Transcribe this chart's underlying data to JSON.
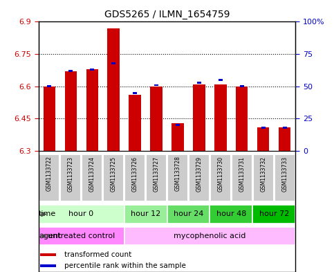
{
  "title": "GDS5265 / ILMN_1654759",
  "samples": [
    "GSM1133722",
    "GSM1133723",
    "GSM1133724",
    "GSM1133725",
    "GSM1133726",
    "GSM1133727",
    "GSM1133728",
    "GSM1133729",
    "GSM1133730",
    "GSM1133731",
    "GSM1133732",
    "GSM1133733"
  ],
  "transformed_count": [
    6.6,
    6.67,
    6.68,
    6.87,
    6.56,
    6.6,
    6.43,
    6.61,
    6.61,
    6.6,
    6.41,
    6.41
  ],
  "percentile_rank": [
    50,
    62,
    63,
    68,
    45,
    51,
    20,
    53,
    55,
    50,
    18,
    18
  ],
  "ylim_left": [
    6.3,
    6.9
  ],
  "ylim_right": [
    0,
    100
  ],
  "yticks_left": [
    6.3,
    6.45,
    6.6,
    6.75,
    6.9
  ],
  "yticks_right": [
    0,
    25,
    50,
    75,
    100
  ],
  "ytick_labels_left": [
    "6.3",
    "6.45",
    "6.6",
    "6.75",
    "6.9"
  ],
  "ytick_labels_right": [
    "0",
    "25",
    "50",
    "75",
    "100%"
  ],
  "bar_color": "#cc0000",
  "percentile_color": "#0000cc",
  "time_groups": [
    {
      "label": "hour 0",
      "samples": [
        0,
        1,
        2,
        3
      ],
      "bg": "#ccffcc"
    },
    {
      "label": "hour 12",
      "samples": [
        4,
        5
      ],
      "bg": "#99ee99"
    },
    {
      "label": "hour 24",
      "samples": [
        6,
        7
      ],
      "bg": "#66dd66"
    },
    {
      "label": "hour 48",
      "samples": [
        8,
        9
      ],
      "bg": "#33cc33"
    },
    {
      "label": "hour 72",
      "samples": [
        10,
        11
      ],
      "bg": "#00bb00"
    }
  ],
  "agent_groups": [
    {
      "label": "untreated control",
      "samples": [
        0,
        1,
        2,
        3
      ],
      "bg": "#ff88ff"
    },
    {
      "label": "mycophenolic acid",
      "samples": [
        4,
        5,
        6,
        7,
        8,
        9,
        10,
        11
      ],
      "bg": "#ffbbff"
    }
  ],
  "sample_box_bg": "#cccccc",
  "legend_bar_color": "#cc0000",
  "legend_pct_color": "#0000cc",
  "base_value": 6.3,
  "bar_width": 0.55
}
